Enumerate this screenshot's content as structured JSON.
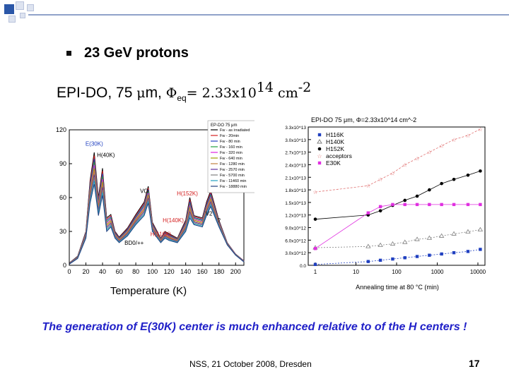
{
  "slide": {
    "bullet": "23 GeV protons",
    "subtitle": {
      "prefix": "EPI-DO, 75 ",
      "mu": "μ",
      "m": "m, ",
      "phi": "Φ",
      "eq": "eq",
      "equals": "= 2.33x10",
      "exp": "14",
      "unit": " cm",
      "unit_exp": "-2"
    },
    "conclusion": "The generation of E(30K) center is much enhanced relative to of the H centers !",
    "footer": "NSS, 21 October 2008, Dresden",
    "page_number": "17"
  },
  "colors": {
    "accent_blue": "#2b57a8",
    "conclusion": "#2020c8"
  },
  "chart_data": [
    {
      "type": "line",
      "title": "EP-DO 75 μm",
      "xlabel": "Temperature (K)",
      "ylabel": "",
      "xlim": [
        0,
        210
      ],
      "ylim": [
        0,
        120
      ],
      "xticks": [
        "0",
        "20",
        "40",
        "60",
        "80",
        "100",
        "120",
        "140",
        "160",
        "180",
        "200"
      ],
      "yticks": [
        "0",
        "30",
        "60",
        "90",
        "120"
      ],
      "legend": [
        "Fw - as irradiated",
        "Fw - 20min",
        "Fw - 80 min",
        "Fw - 160 min",
        "Fw - 320 min",
        "Fw - 640 min",
        "Fw - 1280 min",
        "Fw - 2570 min",
        "Fw - 5700 min",
        "Fw - 11460 min",
        "Fw - 18880 min"
      ],
      "series_colors": [
        "#000000",
        "#d42020",
        "#2040c0",
        "#20a040",
        "#e020e0",
        "#a0a000",
        "#c08040",
        "#6030a0",
        "#808080",
        "#20a0c0",
        "#204080"
      ],
      "annotations": [
        "E(30K)",
        "H(40K)",
        "VO",
        "H(152K)",
        "V2",
        "?",
        "H(140K)",
        "H(116K)",
        "BD0/++"
      ],
      "x": [
        0,
        10,
        20,
        25,
        30,
        35,
        40,
        45,
        50,
        55,
        60,
        70,
        80,
        90,
        95,
        100,
        110,
        115,
        120,
        130,
        140,
        145,
        150,
        160,
        165,
        170,
        180,
        190,
        200,
        210
      ],
      "peak_value_envelope": [
        2,
        8,
        30,
        75,
        100,
        60,
        86,
        42,
        45,
        30,
        25,
        33,
        45,
        56,
        70,
        38,
        24,
        30,
        28,
        24,
        40,
        60,
        44,
        42,
        56,
        66,
        40,
        20,
        10,
        4
      ],
      "low_value_envelope": [
        1,
        6,
        24,
        55,
        72,
        44,
        62,
        30,
        34,
        24,
        20,
        26,
        36,
        44,
        55,
        30,
        20,
        24,
        22,
        20,
        30,
        42,
        36,
        34,
        44,
        52,
        34,
        18,
        9,
        3
      ]
    },
    {
      "type": "line",
      "title": "EPI-DO 75 μm, Φ=2.33x10^14 cm^-2",
      "xlabel": "Annealing time at 80 °C (min)",
      "ylabel": "",
      "x_scale": "log",
      "xlim": [
        1,
        10000
      ],
      "ylim": [
        0,
        33000000000000.0
      ],
      "xticks": [
        "1",
        "10",
        "100",
        "1000",
        "10000"
      ],
      "yticks": [
        "0.0",
        "3.0x10^12",
        "6.0x10^12",
        "9.0x10^12",
        "1.2x10^13",
        "1.5x10^13",
        "1.8x10^13",
        "2.1x10^13",
        "2.4x10^13",
        "2.7x10^13",
        "3.0x10^13",
        "3.3x10^13"
      ],
      "x": [
        1,
        20,
        40,
        80,
        160,
        320,
        640,
        1280,
        2570,
        5700,
        11460
      ],
      "series": [
        {
          "name": "H116K",
          "color": "#2040c0",
          "marker": "square",
          "values": [
            200000000000.0,
            900000000000.0,
            1200000000000.0,
            1500000000000.0,
            1800000000000.0,
            2100000000000.0,
            2400000000000.0,
            2700000000000.0,
            3000000000000.0,
            3300000000000.0,
            3800000000000.0
          ]
        },
        {
          "name": "H140K",
          "color": "#808080",
          "marker": "triangle",
          "values": [
            4200000000000.0,
            4500000000000.0,
            4800000000000.0,
            5100000000000.0,
            5500000000000.0,
            6200000000000.0,
            6500000000000.0,
            7000000000000.0,
            7500000000000.0,
            8000000000000.0,
            8500000000000.0
          ]
        },
        {
          "name": "H152K",
          "color": "#000000",
          "marker": "circle",
          "values": [
            11000000000000.0,
            12000000000000.0,
            13000000000000.0,
            14300000000000.0,
            15500000000000.0,
            16500000000000.0,
            18000000000000.0,
            19500000000000.0,
            20500000000000.0,
            21500000000000.0,
            22500000000000.0
          ]
        },
        {
          "name": "acceptors",
          "color": "#e07070",
          "marker": "star",
          "values": [
            17500000000000.0,
            19000000000000.0,
            20500000000000.0,
            22000000000000.0,
            24000000000000.0,
            25500000000000.0,
            27000000000000.0,
            28500000000000.0,
            30000000000000.0,
            31000000000000.0,
            32500000000000.0
          ]
        },
        {
          "name": "E30K",
          "color": "#e030e0",
          "marker": "square",
          "values": [
            4000000000000.0,
            12500000000000.0,
            14000000000000.0,
            14500000000000.0,
            14500000000000.0,
            14500000000000.0,
            14500000000000.0,
            14500000000000.0,
            14500000000000.0,
            14500000000000.0,
            14500000000000.0
          ]
        }
      ]
    }
  ]
}
